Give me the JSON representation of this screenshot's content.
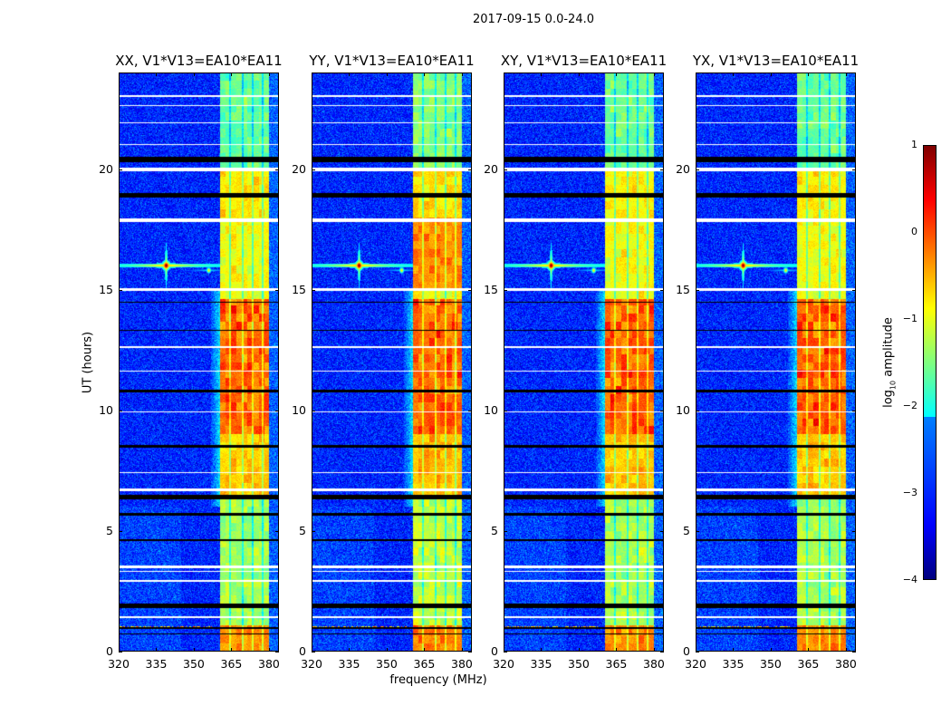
{
  "chart_data": {
    "type": "heatmap",
    "title": "2017-09-15 0.0-24.0",
    "xlabel": "frequency (MHz)",
    "ylabel": "UT (hours)",
    "xlim": [
      320,
      384
    ],
    "ylim": [
      0,
      24
    ],
    "xticks": [
      320,
      335,
      350,
      365,
      380
    ],
    "yticks": [
      0,
      5,
      10,
      15,
      20
    ],
    "colorbar": {
      "label_prefix": "log",
      "label_sub": "10",
      "label_suffix": " amplitude",
      "range": [
        -4,
        1
      ],
      "ticks": [
        1,
        0,
        -1,
        -2,
        -3,
        -4
      ],
      "colormap": "jet"
    },
    "panels": [
      {
        "title": "XX, V1*V13=EA10*EA11",
        "gain": 1.0
      },
      {
        "title": "YY, V1*V13=EA10*EA11",
        "gain": 1.15
      },
      {
        "title": "XY, V1*V13=EA10*EA11",
        "gain": 1.0
      },
      {
        "title": "YX, V1*V13=EA10*EA11",
        "gain": 0.95
      }
    ],
    "background_level": -3.2,
    "band": {
      "freq_range": [
        360.5,
        380
      ],
      "channel_gaps": [
        364.5,
        369.5,
        373.5,
        377.5
      ],
      "levels_by_time": [
        {
          "t": [
            0,
            1.1
          ],
          "value": -0.3
        },
        {
          "t": [
            1.1,
            6.5
          ],
          "value": -1.3
        },
        {
          "t": [
            6.5,
            9.0
          ],
          "value": -0.6
        },
        {
          "t": [
            9.0,
            14.6
          ],
          "value": -0.1
        },
        {
          "t": [
            14.6,
            15.0
          ],
          "value": -1.0
        },
        {
          "t": [
            15.0,
            18.0
          ],
          "value": -0.9
        },
        {
          "t": [
            18.0,
            20.0
          ],
          "value": -0.8
        },
        {
          "t": [
            20.0,
            24.0
          ],
          "value": -1.6
        }
      ]
    },
    "rfi": [
      {
        "freq": 339,
        "time": 16.0,
        "peak": 1.0
      },
      {
        "freq": 356,
        "time": 15.8,
        "peak": -0.8
      }
    ],
    "broadband_rfi_times": [
      1.0,
      8.5
    ],
    "flagged_black": [
      [
        20.3,
        20.5
      ],
      [
        18.8,
        19.0
      ],
      [
        10.75,
        10.85
      ],
      [
        8.45,
        8.55
      ],
      [
        6.3,
        6.5
      ],
      [
        5.65,
        5.75
      ],
      [
        4.6,
        4.65
      ],
      [
        1.8,
        2.0
      ],
      [
        0.95,
        1.02
      ],
      [
        0.7,
        0.75
      ],
      [
        13.3,
        13.35
      ],
      [
        14.45,
        14.5
      ]
    ],
    "flagged_white": [
      [
        19.9,
        20.05
      ],
      [
        17.8,
        17.95
      ],
      [
        14.95,
        15.05
      ],
      [
        6.65,
        6.75
      ],
      [
        3.45,
        3.55
      ],
      [
        3.3,
        3.33
      ],
      [
        2.9,
        2.95
      ],
      [
        21.0,
        21.05
      ],
      [
        21.9,
        21.95
      ],
      [
        22.6,
        22.65
      ],
      [
        23.0,
        23.05
      ],
      [
        12.6,
        12.65
      ],
      [
        11.6,
        11.65
      ],
      [
        9.9,
        9.95
      ],
      [
        7.4,
        7.45
      ],
      [
        1.4,
        1.45
      ]
    ]
  }
}
